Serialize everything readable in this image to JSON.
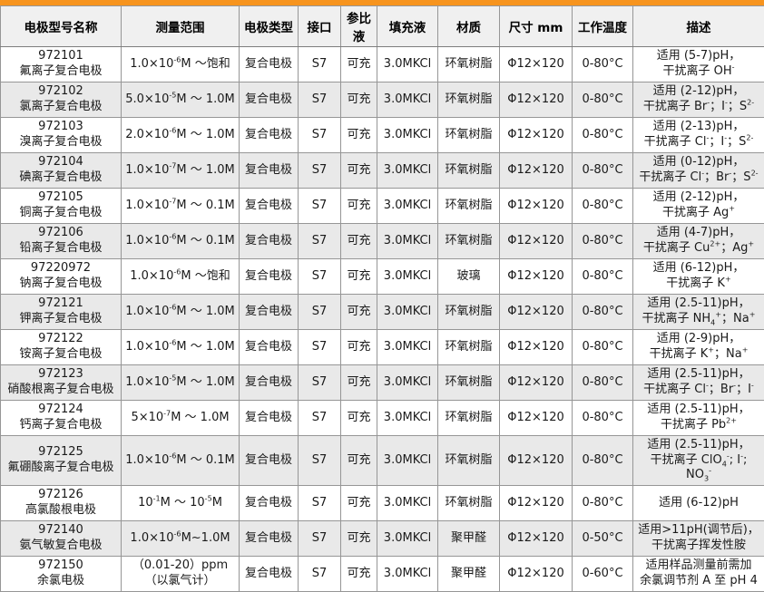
{
  "colors": {
    "accent": "#f7941e",
    "header_bg": "#f0f0f0",
    "row_alt_bg": "#e9e9e9",
    "border": "#969696"
  },
  "table": {
    "columns": [
      "电极型号名称",
      "测量范围",
      "电极类型",
      "接口",
      "参比液",
      "填充液",
      "材质",
      "尺寸 mm",
      "工作温度",
      "描述"
    ],
    "rows": [
      {
        "model": "972101",
        "name": "氟离子复合电极",
        "range": "1.0×10^{-6}M ～饱和",
        "type": "复合电极",
        "port": "S7",
        "ref": "可充",
        "fill": "3.0MKCl",
        "material": "环氧树脂",
        "size": "Φ12×120",
        "temp": "0-80°C",
        "desc": "适用 (5-7)pH，\n干扰离子 OH^{-}"
      },
      {
        "model": "972102",
        "name": "氯离子复合电极",
        "range": "5.0×10^{-5}M ～ 1.0M",
        "type": "复合电极",
        "port": "S7",
        "ref": "可充",
        "fill": "3.0MKCl",
        "material": "环氧树脂",
        "size": "Φ12×120",
        "temp": "0-80°C",
        "desc": "适用 (2-12)pH，\n干扰离子 Br^{-}；I^{-}；S^{2-}"
      },
      {
        "model": "972103",
        "name": "溴离子复合电极",
        "range": "2.0×10^{-6}M ～ 1.0M",
        "type": "复合电极",
        "port": "S7",
        "ref": "可充",
        "fill": "3.0MKCl",
        "material": "环氧树脂",
        "size": "Φ12×120",
        "temp": "0-80°C",
        "desc": "适用 (2-13)pH，\n干扰离子 Cl^{-}；I^{-}；S^{2-}"
      },
      {
        "model": "972104",
        "name": "碘离子复合电极",
        "range": "1.0×10^{-7}M ～ 1.0M",
        "type": "复合电极",
        "port": "S7",
        "ref": "可充",
        "fill": "3.0MKCl",
        "material": "环氧树脂",
        "size": "Φ12×120",
        "temp": "0-80°C",
        "desc": "适用 (0-12)pH，\n干扰离子 Cl^{-}；Br^{-}；S^{2-}"
      },
      {
        "model": "972105",
        "name": "铜离子复合电极",
        "range": "1.0×10^{-7}M ～ 0.1M",
        "type": "复合电极",
        "port": "S7",
        "ref": "可充",
        "fill": "3.0MKCl",
        "material": "环氧树脂",
        "size": "Φ12×120",
        "temp": "0-80°C",
        "desc": "适用 (2-12)pH，\n干扰离子 Ag^{+}"
      },
      {
        "model": "972106",
        "name": "铅离子复合电极",
        "range": "1.0×10^{-6}M ～ 0.1M",
        "type": "复合电极",
        "port": "S7",
        "ref": "可充",
        "fill": "3.0MKCl",
        "material": "环氧树脂",
        "size": "Φ12×120",
        "temp": "0-80°C",
        "desc": "适用 (4-7)pH，\n干扰离子 Cu^{2+}；Ag^{+}"
      },
      {
        "model": "97220972",
        "name": "钠离子复合电极",
        "range": "1.0×10^{-6}M ～饱和",
        "type": "复合电极",
        "port": "S7",
        "ref": "可充",
        "fill": "3.0MKCl",
        "material": "玻璃",
        "size": "Φ12×120",
        "temp": "0-80°C",
        "desc": "适用 (6-12)pH，\n干扰离子 K^{+}"
      },
      {
        "model": "972121",
        "name": "钾离子复合电极",
        "range": "1.0×10^{-6}M ～ 1.0M",
        "type": "复合电极",
        "port": "S7",
        "ref": "可充",
        "fill": "3.0MKCl",
        "material": "环氧树脂",
        "size": "Φ12×120",
        "temp": "0-80°C",
        "desc": "适用 (2.5-11)pH，\n干扰离子 NH_{4}^{+}；Na^{+}"
      },
      {
        "model": "972122",
        "name": "铵离子复合电极",
        "range": "1.0×10^{-6}M ～ 1.0M",
        "type": "复合电极",
        "port": "S7",
        "ref": "可充",
        "fill": "3.0MKCl",
        "material": "环氧树脂",
        "size": "Φ12×120",
        "temp": "0-80°C",
        "desc": "适用 (2-9)pH，\n干扰离子 K^{+}；Na^{+}"
      },
      {
        "model": "972123",
        "name": "硝酸根离子复合电极",
        "range": "1.0×10^{-5}M ～ 1.0M",
        "type": "复合电极",
        "port": "S7",
        "ref": "可充",
        "fill": "3.0MKCl",
        "material": "环氧树脂",
        "size": "Φ12×120",
        "temp": "0-80°C",
        "desc": "适用 (2.5-11)pH，\n干扰离子 Cl^{-}；Br^{-}；I^{-}"
      },
      {
        "model": "972124",
        "name": "钙离子复合电极",
        "range": "5×10^{-7}M ～ 1.0M",
        "type": "复合电极",
        "port": "S7",
        "ref": "可充",
        "fill": "3.0MKCl",
        "material": "环氧树脂",
        "size": "Φ12×120",
        "temp": "0-80°C",
        "desc": "适用 (2.5-11)pH，\n干扰离子 Pb^{2+}"
      },
      {
        "model": "972125",
        "name": "氟硼酸离子复合电极",
        "range": "1.0×10^{-6}M ～ 0.1M",
        "type": "复合电极",
        "port": "S7",
        "ref": "可充",
        "fill": "3.0MKCl",
        "material": "环氧树脂",
        "size": "Φ12×120",
        "temp": "0-80°C",
        "desc": "适用 (2.5-11)pH，\n干扰离子 ClO_{4}^{-}; I^{-}; NO_{3}^{-}"
      },
      {
        "model": "972126",
        "name": "高氯酸根电极",
        "range": "10^{-1}M ～ 10^{-5}M",
        "type": "复合电极",
        "port": "S7",
        "ref": "可充",
        "fill": "3.0MKCl",
        "material": "环氧树脂",
        "size": "Φ12×120",
        "temp": "0-80°C",
        "desc": "适用 (6-12)pH"
      },
      {
        "model": "972140",
        "name": "氨气敏复合电极",
        "range": "1.0×10^{-6}M~1.0M",
        "type": "复合电极",
        "port": "S7",
        "ref": "可充",
        "fill": "3.0MKCl",
        "material": "聚甲醛",
        "size": "Φ12×120",
        "temp": "0-50°C",
        "desc": "适用>11pH(调节后)，\n干扰离子挥发性胺"
      },
      {
        "model": "972150",
        "name": "余氯电极",
        "range": "（0.01-20）ppm\n（以氯气计）",
        "type": "复合电极",
        "port": "S7",
        "ref": "可充",
        "fill": "3.0MKCl",
        "material": "聚甲醛",
        "size": "Φ12×120",
        "temp": "0-60°C",
        "desc": "适用样品测量前需加\n余氯调节剂 A 至 pH 4"
      }
    ]
  }
}
